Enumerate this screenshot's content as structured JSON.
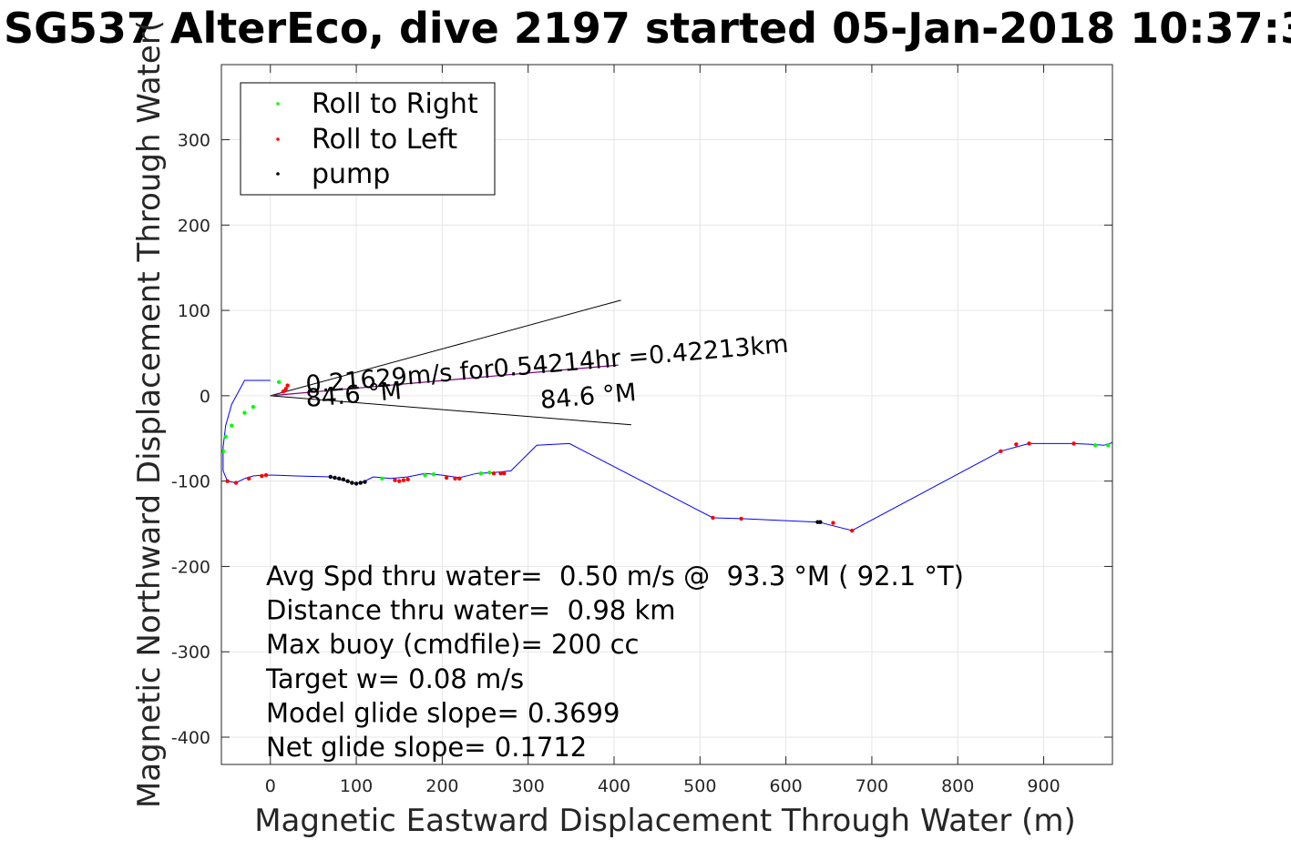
{
  "chart_data": {
    "type": "scatter",
    "title": "SG537 AlterEco, dive 2197 started 05-Jan-2018 10:37:3",
    "xlabel": "Magnetic Eastward Displacement Through Water (m)",
    "ylabel": "Magnetic Northward Displacement Through Water(",
    "xlim": [
      -57,
      980
    ],
    "ylim": [
      -432,
      388
    ],
    "xticks": [
      0,
      100,
      200,
      300,
      400,
      500,
      600,
      700,
      800,
      900
    ],
    "yticks": [
      -400,
      -300,
      -200,
      -100,
      0,
      100,
      200,
      300
    ],
    "grid": true,
    "legend_position": "top-left",
    "legend": [
      {
        "label": "Roll to Right",
        "color": "#00ff00"
      },
      {
        "label": "Roll to Left",
        "color": "#ff0000"
      },
      {
        "label": "pump",
        "color": "#000000"
      }
    ],
    "track": {
      "color": "#0000ff",
      "x": [
        0,
        -30,
        -45,
        -52,
        -55,
        -55,
        -50,
        -40,
        -30,
        -20,
        -10,
        5,
        30,
        70,
        80,
        100,
        110,
        120,
        140,
        160,
        180,
        200,
        220,
        240,
        260,
        280,
        310,
        348,
        515,
        548,
        638,
        677,
        850,
        883,
        935,
        955,
        970,
        980
      ],
      "y": [
        18,
        18,
        -10,
        -35,
        -60,
        -88,
        -100,
        -102,
        -97,
        -94,
        -93,
        -93,
        -94,
        -95,
        -98,
        -103,
        -100,
        -95,
        -97,
        -95,
        -91,
        -93,
        -96,
        -91,
        -90,
        -88,
        -58,
        -56,
        -143,
        -144,
        -148,
        -158,
        -65,
        -56,
        -56,
        -57,
        -58,
        -55
      ]
    },
    "series": [
      {
        "name": "Roll to Right",
        "color": "#00ff00",
        "x": [
          -55,
          -52,
          -45,
          -30,
          -20,
          10,
          130,
          180,
          190,
          245,
          255,
          960,
          975
        ],
        "y": [
          -65,
          -48,
          -35,
          -20,
          -13,
          16,
          -97,
          -93,
          -92,
          -91,
          -90,
          -58,
          -58
        ]
      },
      {
        "name": "Roll to Left",
        "color": "#ff0000",
        "x": [
          -50,
          -40,
          -25,
          -10,
          -5,
          20,
          18,
          15,
          145,
          150,
          155,
          160,
          205,
          215,
          220,
          260,
          268,
          272,
          515,
          548,
          655,
          677,
          850,
          868,
          883,
          935
        ],
        "y": [
          -100,
          -102,
          -97,
          -94,
          -93,
          12,
          8,
          5,
          -99,
          -100,
          -99,
          -98,
          -96,
          -97,
          -97,
          -91,
          -91,
          -91,
          -143,
          -144,
          -149,
          -158,
          -65,
          -57,
          -56,
          -56
        ]
      },
      {
        "name": "pump",
        "color": "#000000",
        "x": [
          70,
          75,
          80,
          85,
          90,
          95,
          100,
          105,
          110,
          637,
          640
        ],
        "y": [
          -95,
          -96,
          -97,
          -98,
          -100,
          -102,
          -103,
          -102,
          -101,
          -148,
          -148
        ]
      }
    ],
    "current_line": {
      "x": [
        0,
        405
      ],
      "y": [
        0,
        36
      ],
      "color": "#800080"
    },
    "cone_lines": [
      {
        "x": [
          0,
          408
        ],
        "y": [
          0,
          112
        ]
      },
      {
        "x": [
          0,
          420
        ],
        "y": [
          0,
          -34
        ]
      }
    ],
    "annotations": [
      {
        "text": "0.21629m/s for0.54214hr =0.42213km",
        "x": 42,
        "y": 3,
        "angle_deg": 4.9
      },
      {
        "text": "84.6 °M",
        "x": 42,
        "y": -13,
        "angle_deg": 4.9
      },
      {
        "text": "84.6 °M",
        "x": 315,
        "y": -15,
        "angle_deg": 4.9
      }
    ],
    "stats": [
      "Avg Spd thru water=  0.50 m/s @  93.3 °M ( 92.1 °T)",
      "Distance thru water=  0.98 km",
      "Max buoy (cmdfile)= 200 cc",
      "Target w= 0.08 m/s",
      "Model glide slope= 0.3699",
      "Net glide slope= 0.1712"
    ]
  }
}
